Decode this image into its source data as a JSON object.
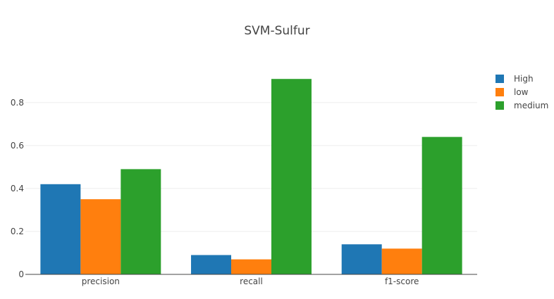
{
  "chart_data": {
    "type": "bar",
    "title": "SVM-Sulfur",
    "xlabel": "",
    "ylabel": "",
    "categories": [
      "precision",
      "recall",
      "f1-score"
    ],
    "series": [
      {
        "name": "High",
        "color": "#1f77b4",
        "values": [
          0.42,
          0.09,
          0.14
        ]
      },
      {
        "name": "low",
        "color": "#ff7f0e",
        "values": [
          0.35,
          0.07,
          0.12
        ]
      },
      {
        "name": "medium",
        "color": "#2ca02c",
        "values": [
          0.49,
          0.91,
          0.64
        ]
      }
    ],
    "ylim": [
      0,
      0.95
    ],
    "yticks": [
      0,
      0.2,
      0.4,
      0.6,
      0.8
    ],
    "ytick_labels": [
      "0",
      "0.2",
      "0.4",
      "0.6",
      "0.8"
    ],
    "grid": true,
    "legend_position": "top-right"
  }
}
